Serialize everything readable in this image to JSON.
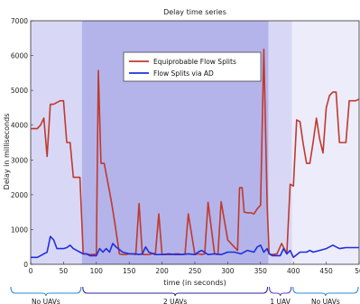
{
  "chart_data": {
    "type": "line",
    "title": "Delay time series",
    "xlabel": "time (in seconds)",
    "ylabel": "Delay in milliseconds",
    "xlim": [
      0,
      500
    ],
    "ylim": [
      0,
      7000
    ],
    "xticks": [
      "0",
      "50",
      "100",
      "150",
      "200",
      "250",
      "300",
      "350",
      "400",
      "450",
      "50"
    ],
    "yticks": [
      "0",
      "1000",
      "2000",
      "3000",
      "4000",
      "5000",
      "6000",
      "7000"
    ],
    "legend_position": "top-center",
    "regions": [
      {
        "label": "No UAVs",
        "range": [
          0,
          78
        ],
        "color": "#d8d8f6"
      },
      {
        "label": "2 UAVs",
        "range": [
          78,
          362
        ],
        "color": "#b4b4ea"
      },
      {
        "label": "1 UAV",
        "range": [
          362,
          398
        ],
        "color": "#d8d8f6"
      },
      {
        "label": "No UAVs",
        "range": [
          398,
          500
        ],
        "color": "#ececfb"
      }
    ],
    "series": [
      {
        "name": "Equiprobable Flow Splits",
        "color": "#c0392b",
        "x": [
          0,
          10,
          15,
          20,
          25,
          30,
          35,
          40,
          45,
          50,
          55,
          60,
          65,
          70,
          75,
          80,
          85,
          90,
          95,
          100,
          103,
          107,
          112,
          118,
          123,
          128,
          135,
          140,
          145,
          150,
          155,
          160,
          165,
          170,
          175,
          180,
          185,
          190,
          195,
          200,
          205,
          210,
          215,
          220,
          225,
          230,
          235,
          240,
          250,
          255,
          260,
          265,
          270,
          280,
          285,
          290,
          300,
          305,
          315,
          318,
          322,
          325,
          330,
          335,
          340,
          345,
          350,
          355,
          360,
          363,
          368,
          375,
          382,
          390,
          395,
          400,
          405,
          410,
          415,
          420,
          425,
          430,
          435,
          440,
          445,
          450,
          455,
          460,
          465,
          470,
          475,
          480,
          485,
          490,
          495,
          500
        ],
        "y": [
          3900,
          3900,
          4000,
          4200,
          3100,
          4600,
          4600,
          4650,
          4700,
          4700,
          3500,
          3500,
          2500,
          2500,
          2500,
          300,
          300,
          280,
          280,
          300,
          5570,
          2900,
          2900,
          2300,
          1800,
          1200,
          300,
          280,
          280,
          300,
          300,
          280,
          1750,
          280,
          280,
          280,
          300,
          320,
          1450,
          280,
          280,
          280,
          280,
          300,
          300,
          280,
          300,
          1450,
          280,
          300,
          280,
          300,
          1780,
          300,
          280,
          1800,
          700,
          600,
          400,
          2200,
          2200,
          1500,
          1480,
          1480,
          1450,
          1600,
          1700,
          6180,
          1700,
          300,
          280,
          300,
          600,
          300,
          2300,
          2250,
          4150,
          4100,
          3450,
          2900,
          2900,
          3500,
          4200,
          3600,
          3200,
          4500,
          4850,
          4950,
          4950,
          3500,
          3500,
          3500,
          4700,
          4700,
          4700,
          4750
        ]
      },
      {
        "name": "Flow Splits via AD",
        "color": "#1f2fdc",
        "x": [
          0,
          10,
          15,
          20,
          25,
          30,
          35,
          40,
          45,
          50,
          55,
          60,
          65,
          70,
          75,
          80,
          85,
          90,
          95,
          100,
          105,
          110,
          115,
          120,
          125,
          130,
          140,
          150,
          160,
          165,
          170,
          175,
          180,
          190,
          200,
          210,
          220,
          230,
          240,
          250,
          255,
          260,
          270,
          280,
          290,
          300,
          310,
          320,
          330,
          340,
          345,
          350,
          355,
          360,
          363,
          368,
          375,
          380,
          385,
          390,
          395,
          400,
          410,
          420,
          425,
          430,
          440,
          450,
          455,
          460,
          470,
          480,
          490,
          500
        ],
        "y": [
          200,
          200,
          250,
          300,
          350,
          800,
          700,
          450,
          450,
          450,
          480,
          550,
          450,
          400,
          350,
          300,
          300,
          250,
          250,
          250,
          450,
          350,
          450,
          350,
          600,
          500,
          350,
          300,
          300,
          280,
          300,
          500,
          350,
          280,
          280,
          300,
          280,
          280,
          300,
          280,
          350,
          400,
          280,
          300,
          280,
          350,
          350,
          300,
          400,
          350,
          500,
          550,
          350,
          450,
          300,
          250,
          250,
          250,
          450,
          300,
          400,
          200,
          350,
          350,
          400,
          350,
          400,
          450,
          500,
          550,
          450,
          480,
          480,
          480
        ]
      }
    ],
    "bracket_labels": [
      "No UAVs",
      "2 UAVs",
      "1 UAV",
      "No UAVs"
    ]
  }
}
